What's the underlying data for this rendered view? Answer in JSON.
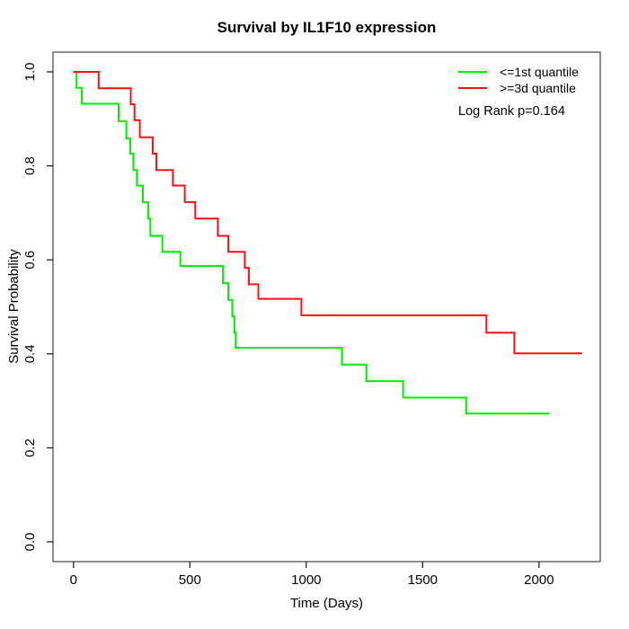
{
  "chart_data": {
    "type": "line",
    "subtype": "kaplan_meier_step",
    "title": "Survival by IL1F10 expression",
    "xlabel": "Time (Days)",
    "ylabel": "Survival Probability",
    "xlim": [
      -88,
      2263
    ],
    "ylim": [
      -0.042,
      1.042
    ],
    "x_ticks": [
      0,
      500,
      1000,
      1500,
      2000
    ],
    "y_ticks": [
      0.0,
      0.2,
      0.4,
      0.6,
      0.8,
      1.0
    ],
    "grid": false,
    "legend_position": "top-right-inside",
    "annotation": "Log Rank p=0.164",
    "series": [
      {
        "name": "<=1st quantile",
        "color": "#00ee00",
        "end_time": 2045,
        "steps": [
          [
            0,
            1.0
          ],
          [
            13,
            0.966
          ],
          [
            36,
            0.932
          ],
          [
            194,
            0.895
          ],
          [
            227,
            0.858
          ],
          [
            244,
            0.826
          ],
          [
            257,
            0.791
          ],
          [
            272,
            0.758
          ],
          [
            298,
            0.723
          ],
          [
            321,
            0.688
          ],
          [
            330,
            0.651
          ],
          [
            382,
            0.617
          ],
          [
            459,
            0.587
          ],
          [
            642,
            0.55
          ],
          [
            665,
            0.515
          ],
          [
            682,
            0.48
          ],
          [
            691,
            0.445
          ],
          [
            697,
            0.413
          ],
          [
            1153,
            0.377
          ],
          [
            1258,
            0.342
          ],
          [
            1416,
            0.307
          ],
          [
            1687,
            0.273
          ]
        ]
      },
      {
        "name": ">=3d quantile",
        "color": "#ff1010",
        "end_time": 2185,
        "steps": [
          [
            0,
            1.0
          ],
          [
            108,
            0.965
          ],
          [
            246,
            0.931
          ],
          [
            262,
            0.897
          ],
          [
            285,
            0.861
          ],
          [
            340,
            0.826
          ],
          [
            356,
            0.791
          ],
          [
            427,
            0.758
          ],
          [
            478,
            0.723
          ],
          [
            523,
            0.688
          ],
          [
            620,
            0.651
          ],
          [
            665,
            0.617
          ],
          [
            736,
            0.583
          ],
          [
            753,
            0.548
          ],
          [
            794,
            0.517
          ],
          [
            979,
            0.482
          ],
          [
            1774,
            0.445
          ],
          [
            1894,
            0.401
          ]
        ]
      }
    ]
  }
}
